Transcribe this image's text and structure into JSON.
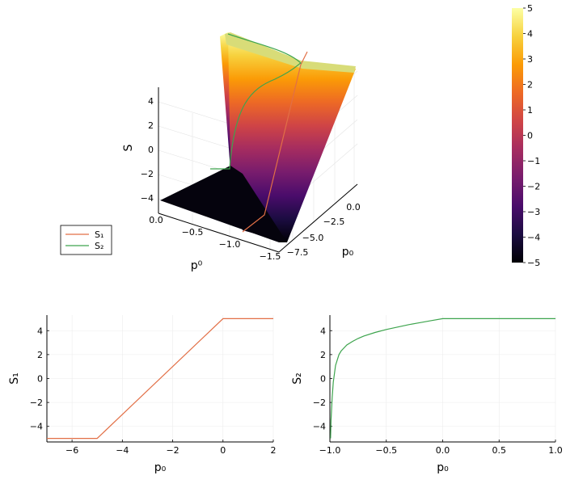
{
  "chart_data": [
    {
      "type": "surface3d",
      "xlabel": "p⁰",
      "ylabel": "p₀",
      "zlabel": "S",
      "x_ticks": [
        "0.0",
        "−0.5",
        "−1.0",
        "−1.5"
      ],
      "y_ticks": [
        "−7.5",
        "−5.0",
        "−2.5",
        "0.0"
      ],
      "z_ticks": [
        "−4",
        "−2",
        "0",
        "2",
        "4"
      ],
      "xlim": [
        -1.6,
        0.0
      ],
      "ylim": [
        -8.0,
        1.0
      ],
      "zlim": [
        -5,
        5
      ],
      "grid": true,
      "legend": {
        "placement": "left",
        "entries": [
          {
            "label": "S₁",
            "color": "#e26f46"
          },
          {
            "label": "S₂",
            "color": "#3da44d"
          }
        ]
      },
      "colorbar": {
        "min": -5,
        "max": 5,
        "ticks": [
          "5",
          "4",
          "3",
          "2",
          "1",
          "0",
          "−1",
          "−2",
          "−3",
          "−4",
          "−5"
        ],
        "colormap": "inferno",
        "stops": [
          "#000004",
          "#1b0c41",
          "#4a0c6b",
          "#781c6d",
          "#a52c60",
          "#cf4446",
          "#ed6925",
          "#fb9b06",
          "#f7d13d",
          "#fcffa4"
        ]
      }
    },
    {
      "type": "line",
      "xlabel": "p₀",
      "ylabel": "S₁",
      "xlim": [
        -7,
        2
      ],
      "ylim": [
        -5.3,
        5.3
      ],
      "x_ticks": [
        "−6",
        "−4",
        "−2",
        "0",
        "2"
      ],
      "y_ticks": [
        "−4",
        "−2",
        "0",
        "2",
        "4"
      ],
      "grid": true,
      "series": [
        {
          "color": "#e26f46",
          "x": [
            -7,
            -5,
            0,
            2
          ],
          "y": [
            -5,
            -5,
            5,
            5
          ]
        }
      ]
    },
    {
      "type": "line",
      "xlabel": "p₀",
      "ylabel": "S₂",
      "xlim": [
        -1.0,
        1.0
      ],
      "ylim": [
        -5.3,
        5.3
      ],
      "x_ticks": [
        "−1.0",
        "−0.5",
        "0.0",
        "0.5",
        "1.0"
      ],
      "y_ticks": [
        "−4",
        "−2",
        "0",
        "2",
        "4"
      ],
      "grid": true,
      "series": [
        {
          "color": "#3da44d",
          "x": [
            -0.994,
            -0.99,
            -0.98,
            -0.97,
            -0.95,
            -0.92,
            -0.9,
            -0.85,
            -0.8,
            -0.75,
            -0.7,
            -0.6,
            -0.5,
            -0.4,
            -0.3,
            -0.2,
            -0.1,
            0.0,
            0.5,
            1.0
          ],
          "y": [
            -5.0,
            -3.5,
            -1.6,
            -0.3,
            1.1,
            2.0,
            2.3,
            2.8,
            3.1,
            3.35,
            3.55,
            3.85,
            4.1,
            4.3,
            4.5,
            4.67,
            4.84,
            5.0,
            5.0,
            5.0
          ]
        }
      ]
    }
  ]
}
